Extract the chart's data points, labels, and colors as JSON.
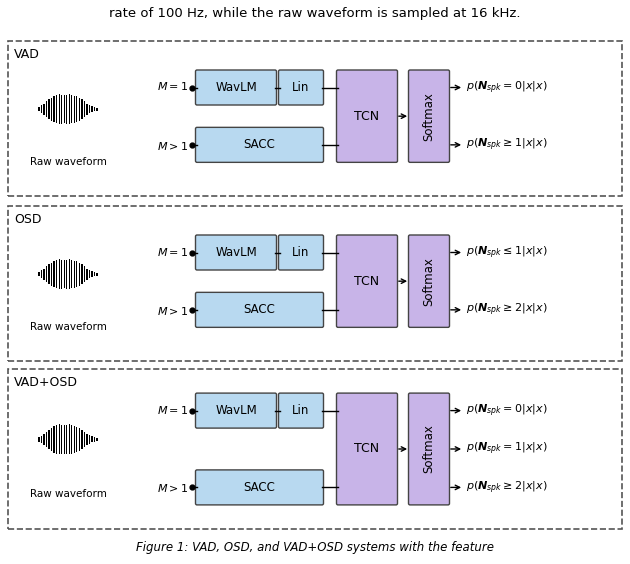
{
  "panels": [
    {
      "label": "VAD",
      "outputs": [
        "p(\\boldsymbol{N}_{spk}=0|x)",
        "p(\\boldsymbol{N}_{spk}\\geq 1|x)"
      ]
    },
    {
      "label": "OSD",
      "outputs": [
        "p(\\boldsymbol{N}_{spk}\\leq 1|x)",
        "p(\\boldsymbol{N}_{spk}\\geq 2|x)"
      ]
    },
    {
      "label": "VAD+OSD",
      "outputs": [
        "p(\\boldsymbol{N}_{spk}=0|x)",
        "p(\\boldsymbol{N}_{spk}=1|x)",
        "p(\\boldsymbol{N}_{spk}\\geq 2|x)"
      ]
    }
  ],
  "top_text": "rate of 100 Hz, while the raw waveform is sampled at 16 kHz.",
  "caption": "Figure 1: VAD, OSD, and VAD+OSD systems with the feature",
  "box_blue": "#b8d9f0",
  "box_purple": "#c8b4e8",
  "border_color": "#444444",
  "bg_color": "#ffffff",
  "figure_width": 6.3,
  "figure_height": 5.64,
  "dpi": 100
}
